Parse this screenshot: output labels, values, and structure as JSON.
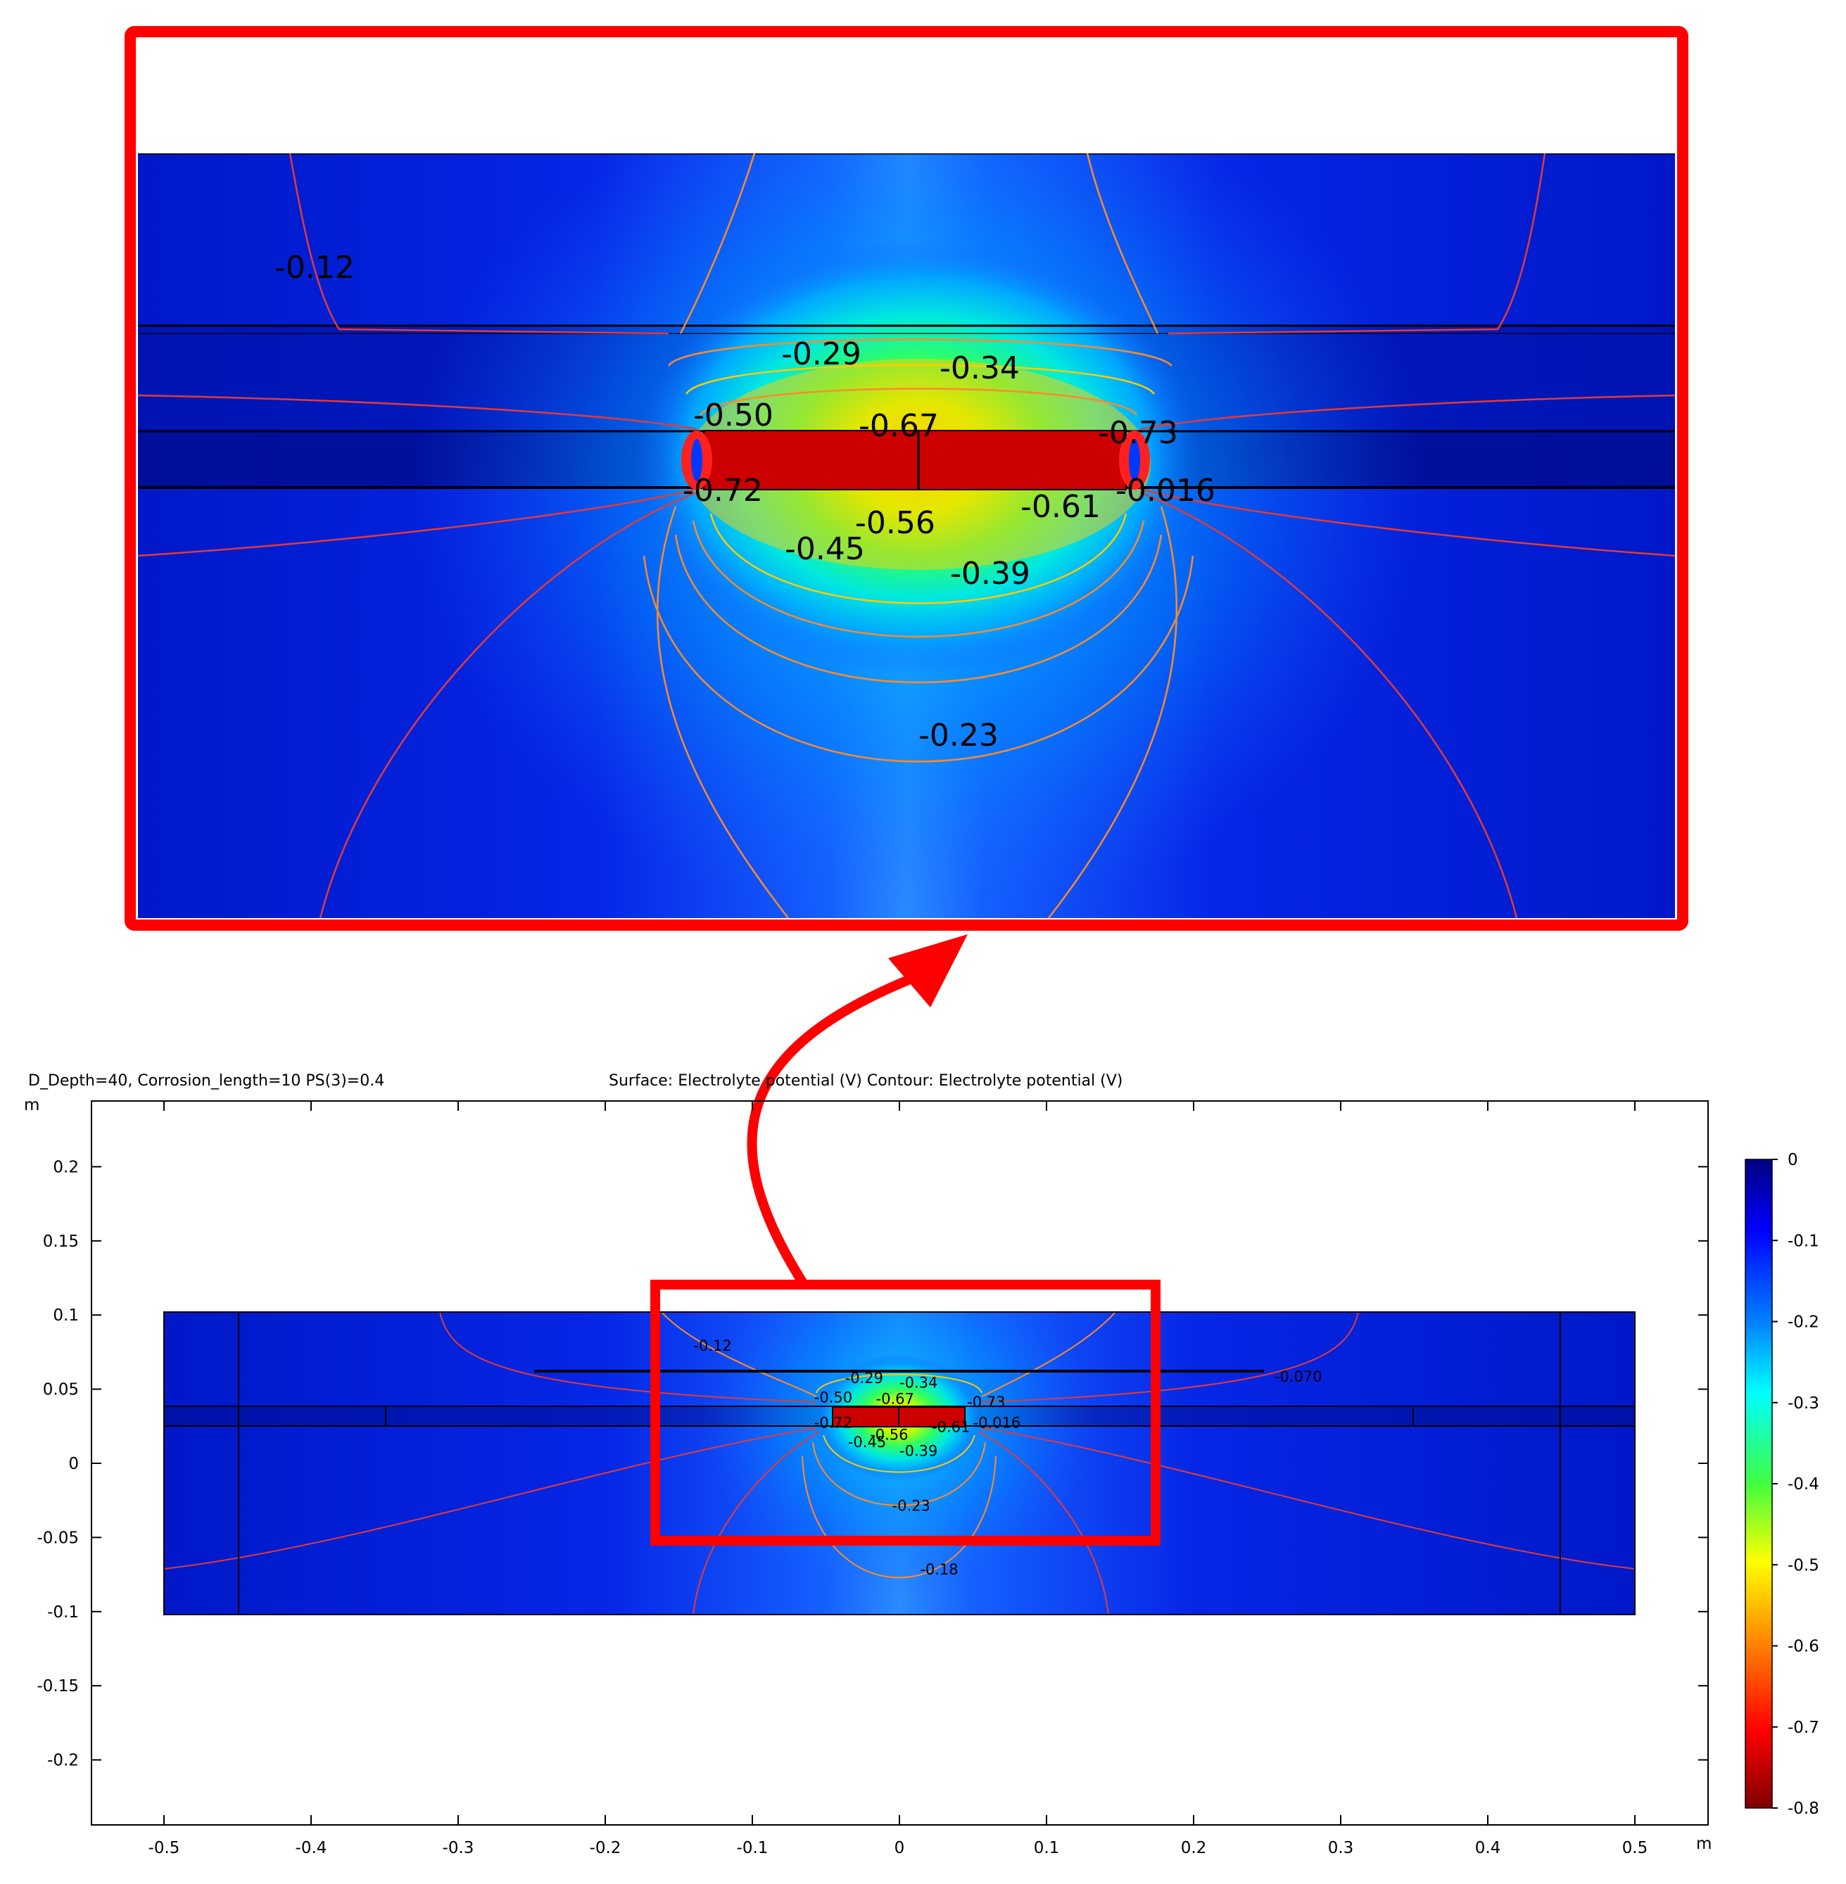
{
  "header": {
    "params": "D_Depth=40, Corrosion_length=10 PS(3)=0.4",
    "plot_title": "Surface: Electrolyte potential (V)  Contour: Electrolyte potential (V)"
  },
  "chart_data": {
    "type": "heatmap",
    "title": "Surface: Electrolyte potential (V)  Contour: Electrolyte potential (V)",
    "x_unit": "m",
    "y_unit": "m",
    "xlim": [
      -0.55,
      0.55
    ],
    "ylim": [
      -0.24,
      0.24
    ],
    "x_ticks": [
      -0.5,
      -0.4,
      -0.3,
      -0.2,
      -0.1,
      0,
      0.1,
      0.2,
      0.3,
      0.4,
      0.5
    ],
    "x_tick_labels": [
      "-0.5",
      "-0.4",
      "-0.3",
      "-0.2",
      "-0.1",
      "0",
      "0.1",
      "0.2",
      "0.3",
      "0.4",
      "0.5"
    ],
    "y_ticks": [
      0.2,
      0.15,
      0.1,
      0.05,
      0,
      -0.05,
      -0.1,
      -0.15,
      -0.2
    ],
    "y_tick_labels": [
      "0.2",
      "0.15",
      "0.1",
      "0.05",
      "0",
      "-0.05",
      "-0.1",
      "-0.15",
      "-0.2"
    ],
    "colorbar": {
      "ticks": [
        0,
        -0.1,
        -0.2,
        -0.3,
        -0.4,
        -0.5,
        -0.6,
        -0.7,
        -0.8
      ],
      "tick_labels": [
        "0",
        "-0.1",
        "-0.2",
        "-0.3",
        "-0.4",
        "-0.5",
        "-0.6",
        "-0.7",
        "-0.8"
      ],
      "range": [
        -0.8,
        0
      ],
      "colormap": "rainbow"
    },
    "domain": {
      "x": [
        -0.5,
        0.5
      ],
      "y": [
        -0.102,
        0.102
      ]
    },
    "contour_labels": [
      {
        "text": "-0.12",
        "x": -0.14,
        "y": 0.076
      },
      {
        "text": "-0.070",
        "x": 0.255,
        "y": 0.055
      },
      {
        "text": "-0.29",
        "x": -0.037,
        "y": 0.054
      },
      {
        "text": "-0.34",
        "x": 0.0,
        "y": 0.051
      },
      {
        "text": "-0.50",
        "x": -0.058,
        "y": 0.041
      },
      {
        "text": "-0.67",
        "x": -0.016,
        "y": 0.04
      },
      {
        "text": "-0.73",
        "x": 0.046,
        "y": 0.038
      },
      {
        "text": "-0.72",
        "x": -0.058,
        "y": 0.024
      },
      {
        "text": "-0.56",
        "x": -0.02,
        "y": 0.016
      },
      {
        "text": "-0.61",
        "x": 0.022,
        "y": 0.021
      },
      {
        "text": "-0.016",
        "x": 0.05,
        "y": 0.024
      },
      {
        "text": "-0.45",
        "x": -0.035,
        "y": 0.011
      },
      {
        "text": "-0.39",
        "x": 0.0,
        "y": 0.005
      },
      {
        "text": "-0.23",
        "x": -0.005,
        "y": -0.032
      },
      {
        "text": "-0.18",
        "x": 0.014,
        "y": -0.075
      }
    ],
    "inset": {
      "zoom_region": {
        "x": [
          -0.17,
          0.175
        ],
        "y": [
          -0.055,
          0.12
        ]
      },
      "contour_labels": [
        "-0.12",
        "-0.29",
        "-0.34",
        "-0.50",
        "-0.67",
        "-0.73",
        "-0.72",
        "-0.016",
        "-0.56",
        "-0.61",
        "-0.45",
        "-0.39",
        "-0.23"
      ]
    }
  },
  "colors": {
    "background_field": "#0a22f0",
    "steel_core": "#cc0000",
    "highlight_box": "#ff0000",
    "contour_red": "#e23a3a",
    "contour_orange": "#ff8a2a"
  }
}
